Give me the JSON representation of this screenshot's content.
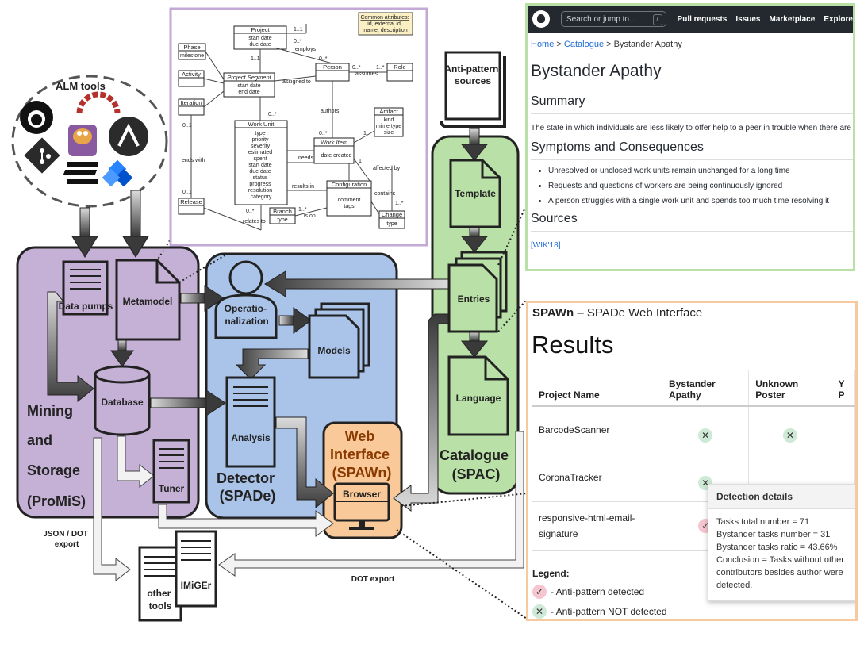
{
  "diagram": {
    "alm_tools": "ALM tools",
    "data_pumps": "Data pumps",
    "metamodel": "Metamodel",
    "database": "Database",
    "tuner": "Tuner",
    "mining": [
      "Mining",
      "and",
      "Storage",
      "(ProMiS)"
    ],
    "operationalization": [
      "Operatio-",
      "nalization"
    ],
    "models": "Models",
    "analysis": "Analysis",
    "detector": [
      "Detector",
      "(SPADe)"
    ],
    "web_interface": [
      "Web",
      "Interface",
      "(SPAWn)"
    ],
    "browser": "Browser",
    "antipattern_sources": [
      "Anti-pattern",
      "sources"
    ],
    "template": "Template",
    "entries": "Entries",
    "language": "Language",
    "catalogue": [
      "Catalogue",
      "(SPAC)"
    ],
    "json_dot_export": [
      "JSON / DOT",
      "export"
    ],
    "dot_export": "DOT export",
    "other_tools": [
      "other",
      "tools"
    ],
    "imiger": "IMiGEr"
  },
  "uml": {
    "common_attributes": [
      "Common attributes:",
      "id, external id,",
      "name, description"
    ],
    "project": {
      "name": "Project",
      "attrs": [
        "start date",
        "due date"
      ]
    },
    "phase": {
      "name": "Phase",
      "attrs": [
        "milestone"
      ]
    },
    "activity": "Activity",
    "iteration": "Iteration",
    "release": "Release",
    "project_segment": {
      "name": "Project Segment",
      "attrs": [
        "start date",
        "end date"
      ]
    },
    "person": "Person",
    "role": "Role",
    "artifact": {
      "name": "Artifact",
      "attrs": [
        "kind",
        "mime type",
        "size"
      ]
    },
    "work_unit": {
      "name": "Work Unit",
      "attrs": [
        "type",
        "priority",
        "severity",
        "estimated",
        "spent",
        "start date",
        "due date",
        "status",
        "progress",
        "resolution",
        "category"
      ]
    },
    "work_item": {
      "name": "Work Item",
      "attrs": [
        "date created"
      ]
    },
    "configuration": {
      "name": "Configuration",
      "attrs": [
        "comment",
        "tags"
      ]
    },
    "branch": {
      "name": "Branch",
      "attrs": [
        "type"
      ]
    },
    "change": {
      "name": "Change",
      "attrs": [
        "type"
      ]
    },
    "edges": {
      "employs": "employs",
      "assigned_to": "assigned to",
      "assumes": "assumes",
      "authors": "authors",
      "ends_with": "ends with",
      "needs": "needs",
      "results_in": "results in",
      "affected_by": "affected by",
      "contains": "contains",
      "is_on": "is on",
      "relates_to": "relates to"
    },
    "mult": {
      "one": "1",
      "one_one": "1..1",
      "zero_many": "0..*",
      "one_many": "1..*",
      "zero_one": "0..1"
    }
  },
  "github": {
    "search_placeholder": "Search or jump to...",
    "slash": "/",
    "nav": [
      "Pull requests",
      "Issues",
      "Marketplace",
      "Explore"
    ],
    "breadcrumb": [
      "Home",
      "Catalogue",
      "Bystander Apathy"
    ],
    "sep": ">",
    "title": "Bystander Apathy",
    "summary_heading": "Summary",
    "summary_text": "The state in which individuals are less likely to offer help to a peer in trouble when there are other people",
    "symptoms_heading": "Symptoms and Consequences",
    "symptoms": [
      "Unresolved or unclosed work units remain unchanged for a long time",
      "Requests and questions of workers are being continuously ignored",
      "A person struggles with a single work unit and spends too much time resolving it"
    ],
    "sources_heading": "Sources",
    "source_link": "[WIK'18]"
  },
  "spawn": {
    "brand": "SPAWn",
    "subtitle": " – SPADe Web Interface",
    "results": "Results",
    "columns": [
      "Project Name",
      "Bystander Apathy",
      "Unknown Poster",
      "Y P"
    ],
    "rows": [
      {
        "name": "BarcodeScanner"
      },
      {
        "name": "CoronaTracker"
      },
      {
        "name": "responsive-html-email-signature"
      }
    ],
    "check_mark": "✓",
    "cross_mark": "✕",
    "tooltip": {
      "title": "Detection details",
      "lines": [
        "Tasks total number = 71",
        "Bystander tasks number = 31",
        "Bystander tasks ratio = 43.66%",
        "Conclusion = Tasks without other contributors besides author were detected."
      ]
    },
    "legend_title": "Legend:",
    "legend_detected": "- Anti-pattern detected",
    "legend_not_detected": "- Anti-pattern NOT detected"
  },
  "colors": {
    "promis_fill": "#c6b1d6",
    "spade_fill": "#a9c3e9",
    "spawn_fill": "#f9c99a",
    "spac_fill": "#b9e0a6",
    "uml_border": "#c3a9d6",
    "github_border": "#b9e0a6",
    "spawn_border": "#f7c99e"
  }
}
